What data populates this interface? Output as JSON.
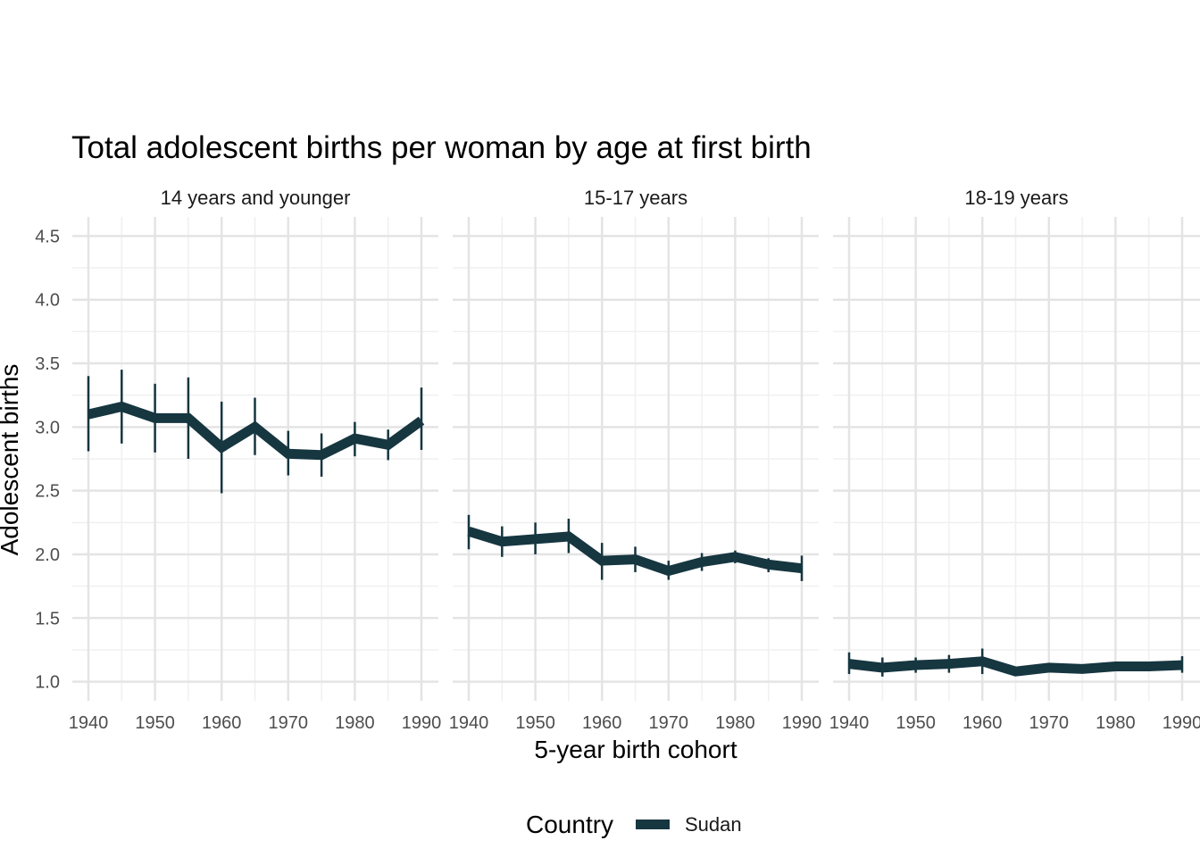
{
  "chart_data": {
    "type": "line",
    "title": "Total adolescent births per woman by age at first birth",
    "xlabel": "5-year birth cohort",
    "ylabel": "Adolescent births",
    "x": [
      1940,
      1945,
      1950,
      1955,
      1960,
      1965,
      1970,
      1975,
      1980,
      1985,
      1990
    ],
    "x_ticks": [
      "1940",
      "1950",
      "1960",
      "1970",
      "1980",
      "1990"
    ],
    "y_ticks": [
      "1.0",
      "1.5",
      "2.0",
      "2.5",
      "3.0",
      "3.5",
      "4.0",
      "4.5"
    ],
    "xlim": [
      1940,
      1990
    ],
    "ylim": [
      0.85,
      4.65
    ],
    "grid": true,
    "legend": {
      "title": "Country",
      "position": "bottom",
      "entries": [
        "Sudan"
      ]
    },
    "series_color": "#163640",
    "panels": [
      {
        "label": "14 years and younger",
        "series": [
          {
            "name": "Sudan",
            "values": [
              3.1,
              3.16,
              3.07,
              3.07,
              2.84,
              3.0,
              2.79,
              2.78,
              2.91,
              2.86,
              3.05
            ],
            "lower": [
              2.81,
              2.87,
              2.8,
              2.75,
              2.48,
              2.78,
              2.62,
              2.61,
              2.77,
              2.74,
              2.82
            ],
            "upper": [
              3.4,
              3.45,
              3.34,
              3.39,
              3.2,
              3.23,
              2.97,
              2.95,
              3.04,
              2.98,
              3.31
            ]
          }
        ]
      },
      {
        "label": "15-17 years",
        "series": [
          {
            "name": "Sudan",
            "values": [
              2.18,
              2.1,
              2.12,
              2.14,
              1.95,
              1.96,
              1.87,
              1.94,
              1.98,
              1.92,
              1.89
            ],
            "lower": [
              2.04,
              1.98,
              2.0,
              2.01,
              1.8,
              1.86,
              1.8,
              1.87,
              1.93,
              1.86,
              1.79
            ],
            "upper": [
              2.31,
              2.22,
              2.25,
              2.28,
              2.09,
              2.06,
              1.95,
              2.01,
              2.03,
              1.97,
              1.99
            ]
          }
        ]
      },
      {
        "label": "18-19 years",
        "series": [
          {
            "name": "Sudan",
            "values": [
              1.14,
              1.11,
              1.13,
              1.14,
              1.16,
              1.08,
              1.11,
              1.1,
              1.12,
              1.12,
              1.13
            ],
            "lower": [
              1.06,
              1.04,
              1.07,
              1.07,
              1.06,
              1.05,
              1.09,
              1.08,
              1.1,
              1.1,
              1.07
            ],
            "upper": [
              1.23,
              1.19,
              1.19,
              1.21,
              1.26,
              1.11,
              1.13,
              1.12,
              1.14,
              1.14,
              1.2
            ]
          }
        ]
      }
    ]
  }
}
